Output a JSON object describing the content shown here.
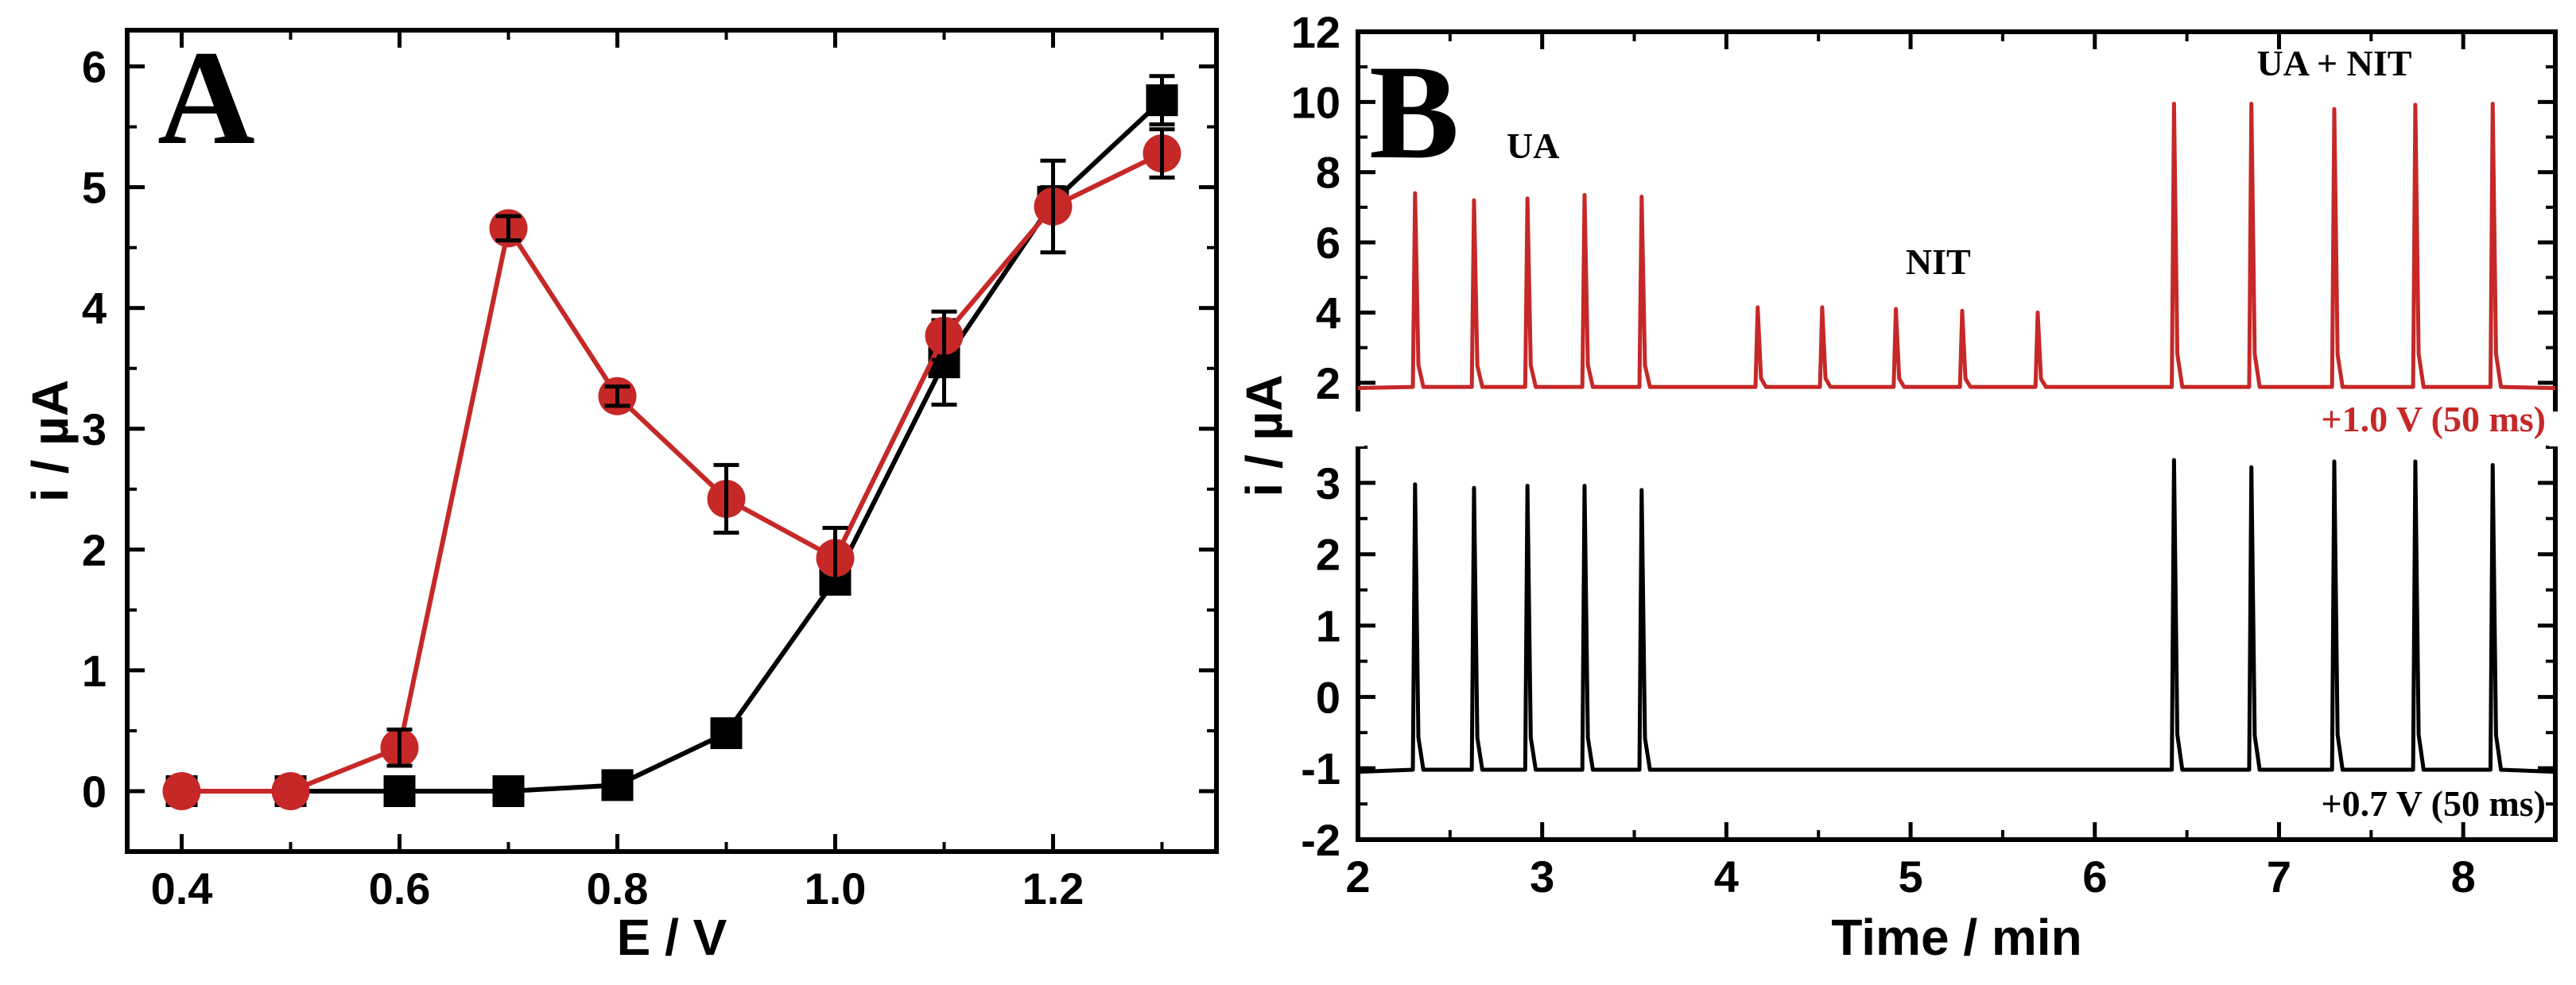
{
  "colors": {
    "red": "#C62828",
    "black": "#000000"
  },
  "chart_data": [
    {
      "type": "scatter",
      "panel_label": "A",
      "xlabel": "E / V",
      "ylabel": "i / µA",
      "xlim": [
        0.35,
        1.35
      ],
      "ylim": [
        -0.5,
        6.3
      ],
      "xticks": [
        "0.4",
        "0.6",
        "0.8",
        "1.0",
        "1.2"
      ],
      "yticks": [
        "0",
        "1",
        "2",
        "3",
        "4",
        "5",
        "6"
      ],
      "series": [
        {
          "color": "black",
          "marker": "square",
          "x": [
            0.4,
            0.5,
            0.6,
            0.7,
            0.8,
            0.9,
            1.0,
            1.1,
            1.2,
            1.3
          ],
          "y": [
            0.0,
            0.0,
            0.0,
            0.0,
            0.05,
            0.48,
            1.75,
            3.55,
            4.88,
            5.72
          ],
          "err": [
            0,
            0,
            0,
            0,
            0.08,
            0.1,
            0.1,
            0.35,
            0.12,
            0.2
          ]
        },
        {
          "color": "red",
          "marker": "circle",
          "x": [
            0.4,
            0.5,
            0.6,
            0.7,
            0.8,
            0.9,
            1.0,
            1.1,
            1.2,
            1.3
          ],
          "y": [
            0.0,
            0.0,
            0.36,
            4.66,
            3.27,
            2.42,
            1.93,
            3.77,
            4.84,
            5.28
          ],
          "err": [
            0,
            0,
            0.15,
            0.1,
            0.08,
            0.28,
            0.25,
            0.2,
            0.38,
            0.2
          ]
        }
      ]
    },
    {
      "type": "line",
      "panel_label": "B",
      "xlabel": "Time / min",
      "ylabel": "i / µA",
      "xlim": [
        2,
        8.5
      ],
      "xticks": [
        "2",
        "3",
        "4",
        "5",
        "6",
        "7",
        "8"
      ],
      "top": {
        "ylim": [
          1,
          12
        ],
        "yticks": [
          "2",
          "4",
          "6",
          "8",
          "10",
          "12"
        ],
        "baseline": 1.85,
        "color": "red",
        "condition_label": "+1.0 V (50 ms)",
        "peaks": [
          {
            "t": 2.31,
            "v": 7.4
          },
          {
            "t": 2.63,
            "v": 7.2
          },
          {
            "t": 2.92,
            "v": 7.25
          },
          {
            "t": 3.23,
            "v": 7.35
          },
          {
            "t": 3.54,
            "v": 7.3
          },
          {
            "t": 4.17,
            "v": 4.15
          },
          {
            "t": 4.52,
            "v": 4.15
          },
          {
            "t": 4.92,
            "v": 4.1
          },
          {
            "t": 5.28,
            "v": 4.05
          },
          {
            "t": 5.69,
            "v": 4.0
          },
          {
            "t": 6.43,
            "v": 9.95
          },
          {
            "t": 6.85,
            "v": 9.95
          },
          {
            "t": 7.3,
            "v": 9.8
          },
          {
            "t": 7.74,
            "v": 9.92
          },
          {
            "t": 8.16,
            "v": 9.95
          }
        ],
        "annotations": [
          {
            "text": "UA",
            "x": 2.95,
            "y": 8.4
          },
          {
            "text": "NIT",
            "x": 5.15,
            "y": 5.1
          },
          {
            "text": "UA + NIT",
            "x": 7.3,
            "y": 10.75
          }
        ]
      },
      "bottom": {
        "ylim": [
          -2,
          3.6
        ],
        "yticks": [
          "-2",
          "-1",
          "0",
          "1",
          "2",
          "3"
        ],
        "baseline": -1.05,
        "color": "black",
        "condition_label": "+0.7 V (50 ms)",
        "peaks": [
          {
            "t": 2.31,
            "v": 2.98
          },
          {
            "t": 2.63,
            "v": 2.93
          },
          {
            "t": 2.92,
            "v": 2.96
          },
          {
            "t": 3.23,
            "v": 2.96
          },
          {
            "t": 3.54,
            "v": 2.9
          },
          {
            "t": 6.43,
            "v": 3.32
          },
          {
            "t": 6.85,
            "v": 3.22
          },
          {
            "t": 7.3,
            "v": 3.3
          },
          {
            "t": 7.74,
            "v": 3.3
          },
          {
            "t": 8.16,
            "v": 3.25
          }
        ]
      }
    }
  ]
}
